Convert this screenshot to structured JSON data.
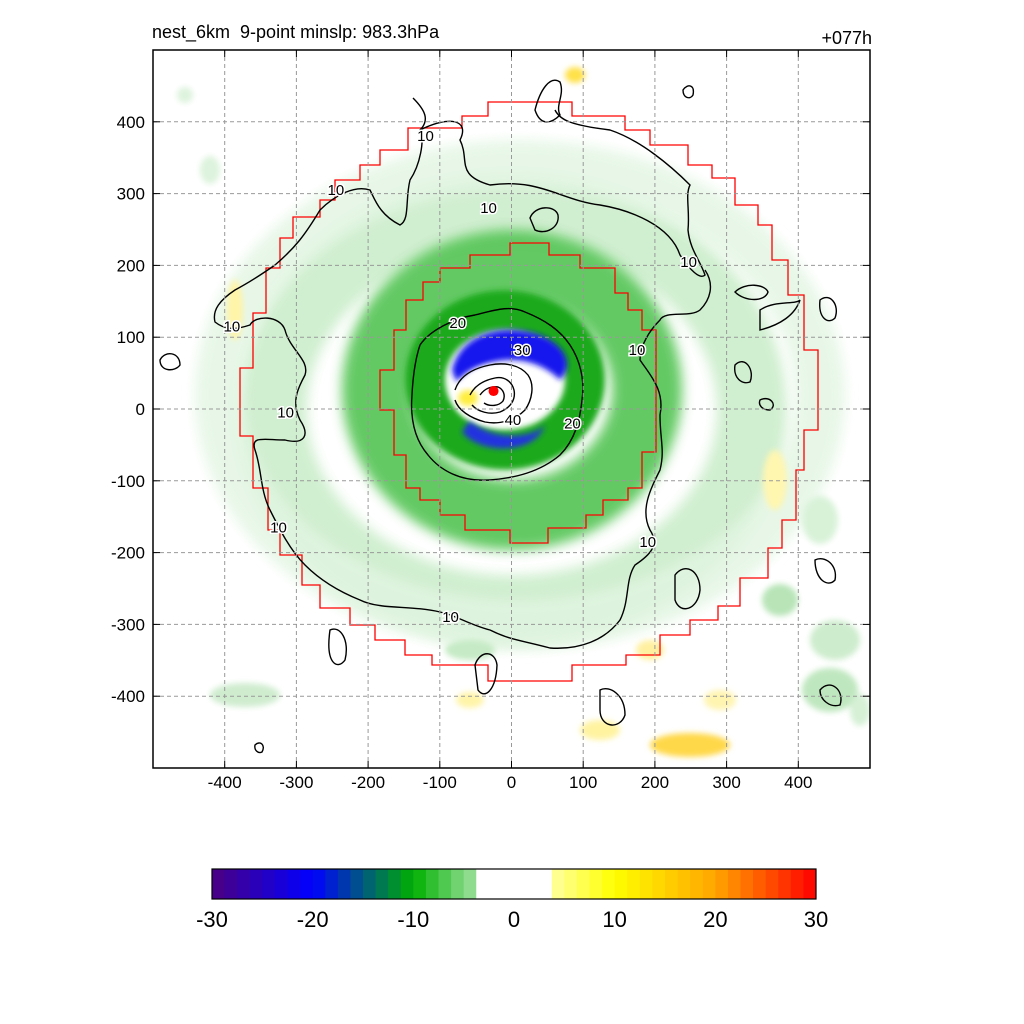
{
  "figure": {
    "title": "nest_6km  9-point minslp: 983.3hPa",
    "time_label": "+077h"
  },
  "chart_data": [
    {
      "type": "heatmap",
      "title": "nest_6km  9-point minslp: 983.3hPa",
      "time_label": "+077h",
      "xlabel": "",
      "ylabel": "",
      "xlim": [
        -500,
        500
      ],
      "ylim": [
        -500,
        500
      ],
      "x_ticks": [
        -400,
        -300,
        -200,
        -100,
        0,
        100,
        200,
        300,
        400
      ],
      "y_ticks": [
        -400,
        -300,
        -200,
        -100,
        0,
        100,
        200,
        300,
        400
      ],
      "grid": true,
      "colorbar": {
        "min": -30,
        "max": 30,
        "ticks": [
          -30,
          -20,
          -10,
          0,
          10,
          20,
          30
        ],
        "colors": [
          "#4b0082",
          "#0000ff",
          "#00b000",
          "#ffffff",
          "#ffff00",
          "#ffa500",
          "#ff0000"
        ]
      },
      "contour_labels": [
        {
          "text": "10",
          "x": -120,
          "y": 380
        },
        {
          "text": "10",
          "x": -245,
          "y": 305
        },
        {
          "text": "10",
          "x": -32,
          "y": 280
        },
        {
          "text": "10",
          "x": 247,
          "y": 205
        },
        {
          "text": "10",
          "x": -390,
          "y": 115
        },
        {
          "text": "20",
          "x": -75,
          "y": 120
        },
        {
          "text": "30",
          "x": 15,
          "y": 82
        },
        {
          "text": "10",
          "x": 175,
          "y": 82
        },
        {
          "text": "10",
          "x": -315,
          "y": -5
        },
        {
          "text": "40",
          "x": 2,
          "y": -15
        },
        {
          "text": "20",
          "x": 85,
          "y": -20
        },
        {
          "text": "10",
          "x": -325,
          "y": -165
        },
        {
          "text": "10",
          "x": 190,
          "y": -185
        },
        {
          "text": "10",
          "x": -85,
          "y": -290
        }
      ],
      "storm_center": {
        "x": -25,
        "y": 25
      },
      "colors": {
        "outer_boundary": "#ff0000",
        "contour": "#000000",
        "center": "#ff0000"
      }
    }
  ]
}
